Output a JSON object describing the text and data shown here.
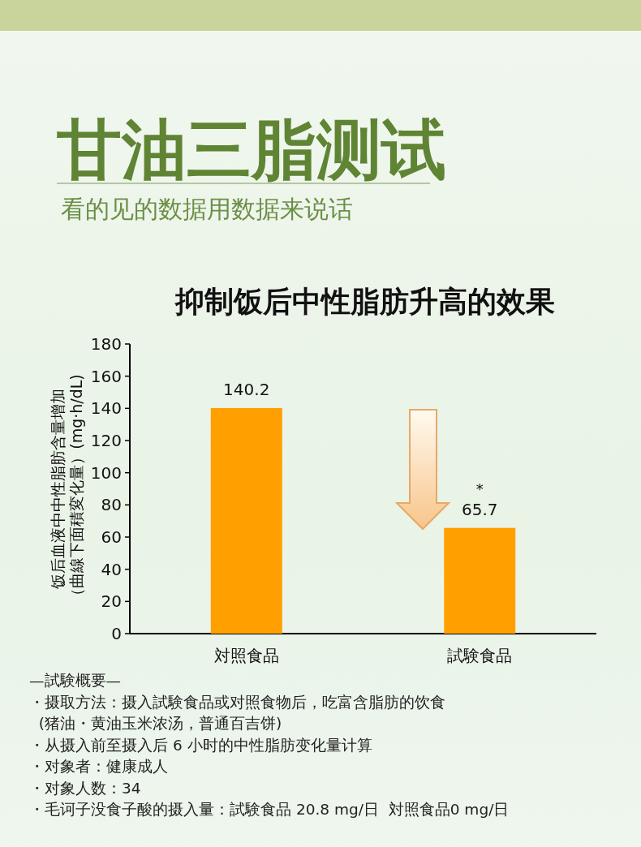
{
  "chart_data": {
    "type": "bar",
    "title": "甘油三脂测试",
    "subtitle": "看的见的数据用数据来说话",
    "ylabel": "饭后血液中中性脂肪含量增加（曲線下面積変化量）(mg·h/dL)",
    "categories": [
      "対照食品",
      "試験食品"
    ],
    "values": [
      140.2,
      65.7
    ],
    "color": "#ffa000",
    "data_labels": true,
    "ylim": [
      0,
      180
    ],
    "yticks": [
      0,
      20,
      40,
      60,
      80,
      100,
      120,
      140,
      160,
      180
    ],
    "grid": false,
    "annotations": [
      "抑制饭后中性脂肪升高的效果",
      {
        "text": "*",
        "x": "試験食品",
        "y": 65.7
      },
      "—試験概要—",
      "・摄取方法：摄入試験食品或对照食物后，吃富含脂肪的饮食",
      "  (猪油・黄油玉米浓汤，普通百吉饼)",
      "・从摄入前至摄入后 6 小时的中性脂肪变化量计算",
      "・对象者：健康成人",
      "・对象人数：34",
      "・毛诃子没食子酸的摄入量：試験食品 20.8 mg/日  対照食品0 mg/日"
    ]
  }
}
